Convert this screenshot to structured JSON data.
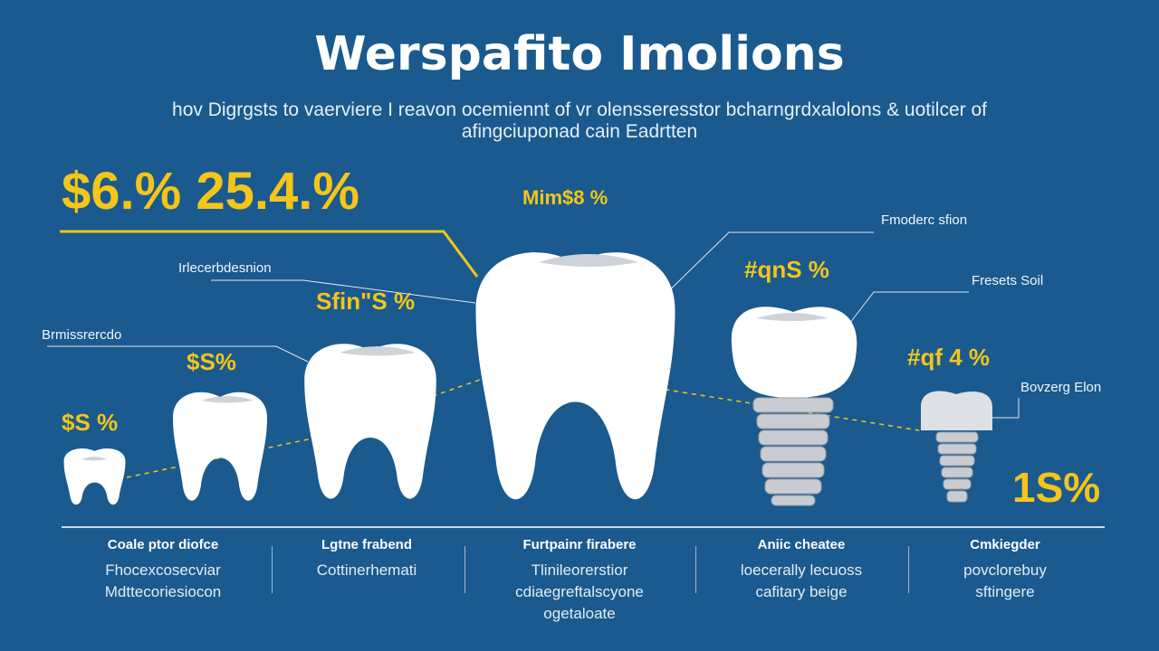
{
  "title": "Werspafito Imolions",
  "subtitle": [
    "hov Digrgsts to vaerviere I reavon ocemiennt of vr olensseresstor bcharngrdxalolons & uotilcer of",
    "afingciuponad cain Eadrtten"
  ],
  "headline_stats": "$6.% 25.4.%",
  "callouts": {
    "top_center_pct": "Mim$8 %",
    "right_label_1": "Fmoderc sfion",
    "left_label_1": "Irlecerbdesnion",
    "left_pct_1": "Sfin\"S %",
    "right_pct_1": "#qnS %",
    "right_label_2": "Fresets Soil",
    "left_label_2": "Brmissrercdo",
    "left_pct_2": "$S%",
    "right_pct_2": "#qf 4 %",
    "right_label_3": "Bovzerg Elon",
    "left_pct_3": "$S %",
    "right_big_pct": "1S%"
  },
  "colors": {
    "background": "#1a5a8e",
    "accent": "#f5c518",
    "tooth": "#ffffff"
  },
  "columns": [
    {
      "heading": "Coale ptor diofce",
      "lines": [
        "Fhocexcosecviar",
        "Mdttecoriesiocon"
      ]
    },
    {
      "heading": "Lgtne frabend",
      "lines": [
        "Cottinerhemati"
      ]
    },
    {
      "heading": "Furtpainr firabere",
      "lines": [
        "Tlinileorerstior",
        "cdiaegreftalscyone",
        "ogetaloate"
      ]
    },
    {
      "heading": "Aniic cheatee",
      "lines": [
        "loecerally lecuoss",
        "cafitary beige"
      ]
    },
    {
      "heading": "Cmkiegder",
      "lines": [
        "povclorebuy",
        "sftingere"
      ]
    }
  ]
}
